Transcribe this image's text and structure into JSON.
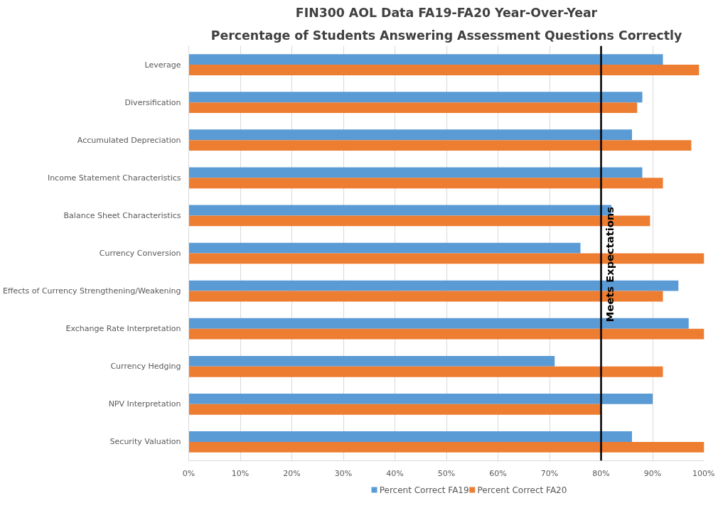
{
  "chart_data": {
    "type": "bar",
    "orientation": "horizontal",
    "title": "FIN300 AOL Data FA19-FA20 Year-Over-Year",
    "subtitle": "Percentage of Students Answering Assessment Questions Correctly",
    "categories": [
      "Leverage",
      "Diversification",
      "Accumulated Depreciation",
      "Income Statement Characteristics",
      "Balance Sheet Characteristics",
      "Currency Conversion",
      "Effects of Currency Strengthening/Weakening",
      "Exchange Rate Interpretation",
      "Currency Hedging",
      "NPV Interpretation",
      "Security Valuation"
    ],
    "series": [
      {
        "name": "Percent Correct FA19",
        "color": "#5b9bd5",
        "values": [
          92,
          88,
          86,
          88,
          82,
          76,
          95,
          97,
          71,
          90,
          86
        ]
      },
      {
        "name": "Percent Correct FA20",
        "color": "#ed7d31",
        "values": [
          99,
          87,
          97.5,
          92,
          89.5,
          100,
          92,
          100,
          92,
          80,
          100
        ]
      }
    ],
    "xlim": [
      0,
      100
    ],
    "xticks": [
      {
        "value": 0,
        "label": "0%"
      },
      {
        "value": 10,
        "label": "10%"
      },
      {
        "value": 20,
        "label": "20%"
      },
      {
        "value": 30,
        "label": "30%"
      },
      {
        "value": 40,
        "label": "40%"
      },
      {
        "value": 50,
        "label": "50%"
      },
      {
        "value": 60,
        "label": "60%"
      },
      {
        "value": 70,
        "label": "70%"
      },
      {
        "value": 80,
        "label": "80%"
      },
      {
        "value": 90,
        "label": "90%"
      },
      {
        "value": 100,
        "label": "100%"
      }
    ],
    "ref_lines": [
      {
        "axis": "x",
        "value": 80,
        "label": "Meets Expectations",
        "color": "#000000"
      }
    ],
    "grid": "x",
    "legend": "bottom"
  }
}
